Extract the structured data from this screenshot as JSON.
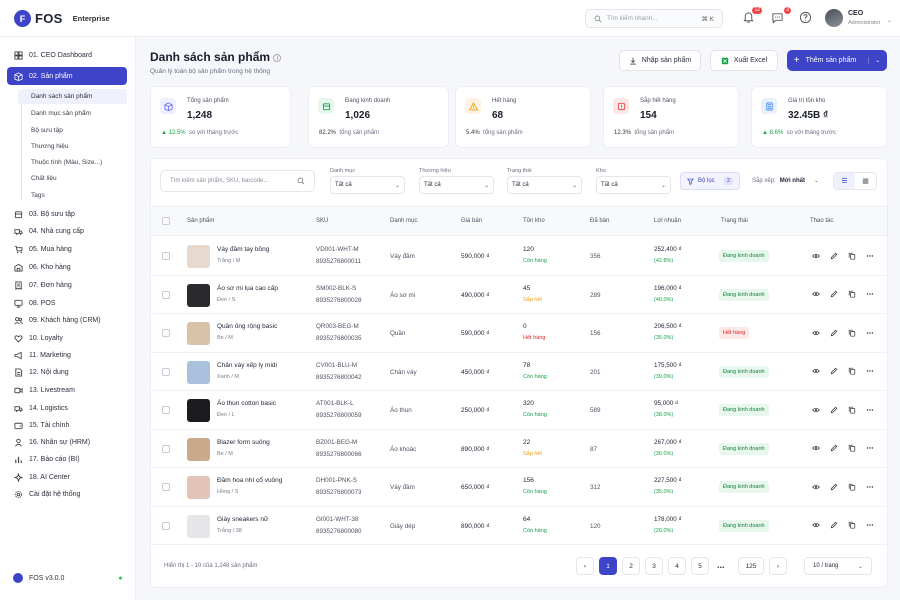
{
  "app": {
    "logo_letter": "F",
    "name": "FOS",
    "edition": "Enterprise",
    "version": "FOS v3.0.0"
  },
  "header": {
    "search_placeholder": "Tìm kiếm nhanh...",
    "search_shortcut": "⌘ K",
    "notifications_count": "12",
    "messages_count": "3",
    "user_name": "CEO",
    "user_role": "Administrator"
  },
  "sidebar": {
    "items": [
      {
        "label": "01. CEO Dashboard"
      },
      {
        "label": "02. Sản phẩm"
      },
      {
        "label": "03. Bộ sưu tập"
      },
      {
        "label": "04. Nhà cung cấp"
      },
      {
        "label": "05. Mua hàng"
      },
      {
        "label": "06. Kho hàng"
      },
      {
        "label": "07. Đơn hàng"
      },
      {
        "label": "08. POS"
      },
      {
        "label": "09. Khách hàng (CRM)"
      },
      {
        "label": "10. Loyalty"
      },
      {
        "label": "11. Marketing"
      },
      {
        "label": "12. Nội dung"
      },
      {
        "label": "13. Livestream"
      },
      {
        "label": "14. Logistics"
      },
      {
        "label": "15. Tài chính"
      },
      {
        "label": "16. Nhân sự (HRM)"
      },
      {
        "label": "17. Báo cáo (BI)"
      },
      {
        "label": "18. AI Center"
      },
      {
        "label": "Cài đặt hệ thống"
      }
    ],
    "sub_items": [
      {
        "label": "Danh sách sản phẩm"
      },
      {
        "label": "Danh mục sản phẩm"
      },
      {
        "label": "Bộ sưu tập"
      },
      {
        "label": "Thương hiệu"
      },
      {
        "label": "Thuộc tính (Màu, Size...)"
      },
      {
        "label": "Chất liệu"
      },
      {
        "label": "Tags"
      }
    ]
  },
  "page": {
    "title": "Danh sách sản phẩm",
    "subtitle": "Quản lý toàn bộ sản phẩm trong hệ thống",
    "import_label": "Nhập sản phẩm",
    "export_label": "Xuất Excel",
    "add_label": "Thêm sản phẩm"
  },
  "stats": [
    {
      "label": "Tổng sản phẩm",
      "value": "1,248",
      "delta": "▲ 12.5%",
      "foot": "so với tháng trước",
      "color": "#6366f1"
    },
    {
      "label": "Đang kinh doanh",
      "value": "1,026",
      "delta": "82.2%",
      "foot": "tổng sản phẩm",
      "color": "#16a34a"
    },
    {
      "label": "Hết hàng",
      "value": "68",
      "delta": "5.4%",
      "foot": "tổng sản phẩm",
      "color": "#f59e0b"
    },
    {
      "label": "Sắp hết hàng",
      "value": "154",
      "delta": "12.3%",
      "foot": "tổng sản phẩm",
      "color": "#ef4444"
    },
    {
      "label": "Giá trị tồn kho",
      "value": "32.45B ₫",
      "delta": "▲ 8.6%",
      "foot": "so với tháng trước",
      "color": "#3b82f6"
    }
  ],
  "filters": {
    "search_placeholder": "Tìm kiếm sản phẩm, SKU, barcode...",
    "category_label": "Danh mục",
    "category_value": "Tất cả",
    "brand_label": "Thương hiệu",
    "brand_value": "Tất cả",
    "status_label": "Trạng thái",
    "status_value": "Tất cả",
    "warehouse_label": "Kho",
    "warehouse_value": "Tất cả",
    "filter_label": "Bộ lọc",
    "filter_count": "2",
    "sort_label": "Sắp xếp:",
    "sort_value": "Mới nhất"
  },
  "table": {
    "headers": [
      "Sản phẩm",
      "SKU",
      "Danh mục",
      "Giá bán",
      "Tồn kho",
      "Đã bán",
      "Lợi nhuận",
      "Trạng thái",
      "Thao tác"
    ],
    "rows": [
      {
        "name": "Váy đầm tay bồng",
        "variant": "Trắng / M",
        "sku": "VD001-WHT-M",
        "barcode": "8935276800011",
        "category": "Váy đầm",
        "price": "590,000 ₫",
        "stock": "120",
        "stock_status": "Còn hàng",
        "sold": "356",
        "profit": "252,400 ₫",
        "margin": "(42.8%)",
        "status": "Đang kinh doanh",
        "thumb": "#e8d9cf"
      },
      {
        "name": "Áo sơ mi lụa cao cấp",
        "variant": "Đen / S",
        "sku": "SM002-BLK-S",
        "barcode": "8935276800028",
        "category": "Áo sơ mi",
        "price": "490,000 ₫",
        "stock": "45",
        "stock_status": "Sắp hết",
        "sold": "289",
        "profit": "196,000 ₫",
        "margin": "(40.0%)",
        "status": "Đang kinh doanh",
        "thumb": "#2a2a2e"
      },
      {
        "name": "Quần ống rộng basic",
        "variant": "Be / M",
        "sku": "QR003-BEG-M",
        "barcode": "8935276800035",
        "category": "Quần",
        "price": "590,000 ₫",
        "stock": "0",
        "stock_status": "Hết hàng",
        "sold": "156",
        "profit": "206,500 ₫",
        "margin": "(35.0%)",
        "status": "Hết hàng",
        "thumb": "#d8c2a8"
      },
      {
        "name": "Chân váy xếp ly midi",
        "variant": "Xanh / M",
        "sku": "CV001-BLU-M",
        "barcode": "8935276800042",
        "category": "Chân váy",
        "price": "450,000 ₫",
        "stock": "78",
        "stock_status": "Còn hàng",
        "sold": "201",
        "profit": "175,500 ₫",
        "margin": "(39.0%)",
        "status": "Đang kinh doanh",
        "thumb": "#a9c1dc"
      },
      {
        "name": "Áo thun cotton basic",
        "variant": "Đen / L",
        "sku": "AT001-BLK-L",
        "barcode": "8935276800059",
        "category": "Áo thun",
        "price": "250,000 ₫",
        "stock": "320",
        "stock_status": "Còn hàng",
        "sold": "589",
        "profit": "95,000 ₫",
        "margin": "(38.0%)",
        "status": "Đang kinh doanh",
        "thumb": "#1c1c20"
      },
      {
        "name": "Blazer form suông",
        "variant": "Be / M",
        "sku": "BZ001-BEG-M",
        "barcode": "8935276800066",
        "category": "Áo khoác",
        "price": "890,000 ₫",
        "stock": "22",
        "stock_status": "Sắp hết",
        "sold": "87",
        "profit": "267,000 ₫",
        "margin": "(30.0%)",
        "status": "Đang kinh doanh",
        "thumb": "#c9ab8c"
      },
      {
        "name": "Đầm hoa nhí cổ vuông",
        "variant": "Hồng / S",
        "sku": "DH001-PNK-S",
        "barcode": "8935276800073",
        "category": "Váy đầm",
        "price": "650,000 ₫",
        "stock": "156",
        "stock_status": "Còn hàng",
        "sold": "312",
        "profit": "227,500 ₫",
        "margin": "(35.0%)",
        "status": "Đang kinh doanh",
        "thumb": "#e2c4b8"
      },
      {
        "name": "Giày sneakers nữ",
        "variant": "Trắng / 38",
        "sku": "GI001-WHT-38",
        "barcode": "8935276800080",
        "category": "Giày dép",
        "price": "890,000 ₫",
        "stock": "64",
        "stock_status": "Còn hàng",
        "sold": "120",
        "profit": "178,000 ₫",
        "margin": "(20.0%)",
        "status": "Đang kinh doanh",
        "thumb": "#e6e6e8"
      }
    ]
  },
  "pagination": {
    "info": "Hiển thị 1 - 10 của 1,248 sản phẩm",
    "pages": [
      "1",
      "2",
      "3",
      "4",
      "5"
    ],
    "ellipsis": "...",
    "last": "125",
    "per_page": "10 / trang"
  },
  "colors": {
    "primary": "#3d44c7",
    "success": "#16a34a",
    "warning": "#f59e0b",
    "danger": "#dc2626"
  }
}
